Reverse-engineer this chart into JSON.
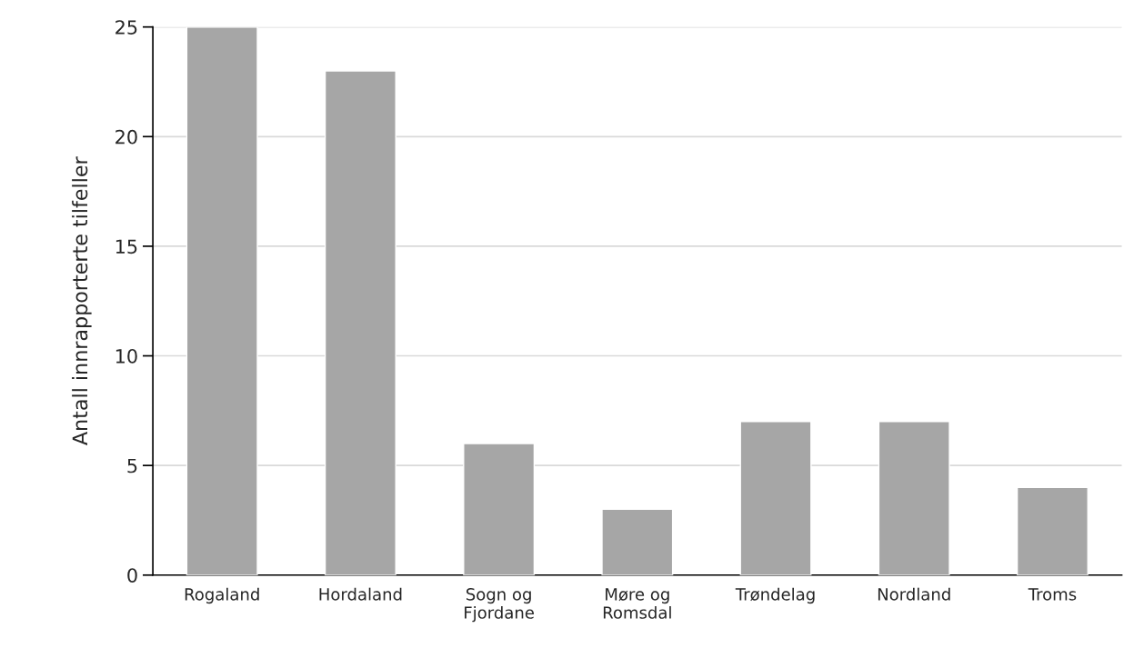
{
  "chart_data": {
    "type": "bar",
    "ylabel": "Antall innrapporterte tilfeller",
    "categories": [
      "Rogaland",
      "Hordaland",
      "Sogn og\nFjordane",
      "Møre og\nRomsdal",
      "Trøndelag",
      "Nordland",
      "Troms"
    ],
    "values": [
      25,
      23,
      6,
      3,
      7,
      7,
      4
    ],
    "color": "#a6a6a6",
    "ylim": [
      0,
      25
    ],
    "yticks": [
      0,
      5,
      10,
      15,
      20,
      25
    ],
    "grid": "y"
  }
}
